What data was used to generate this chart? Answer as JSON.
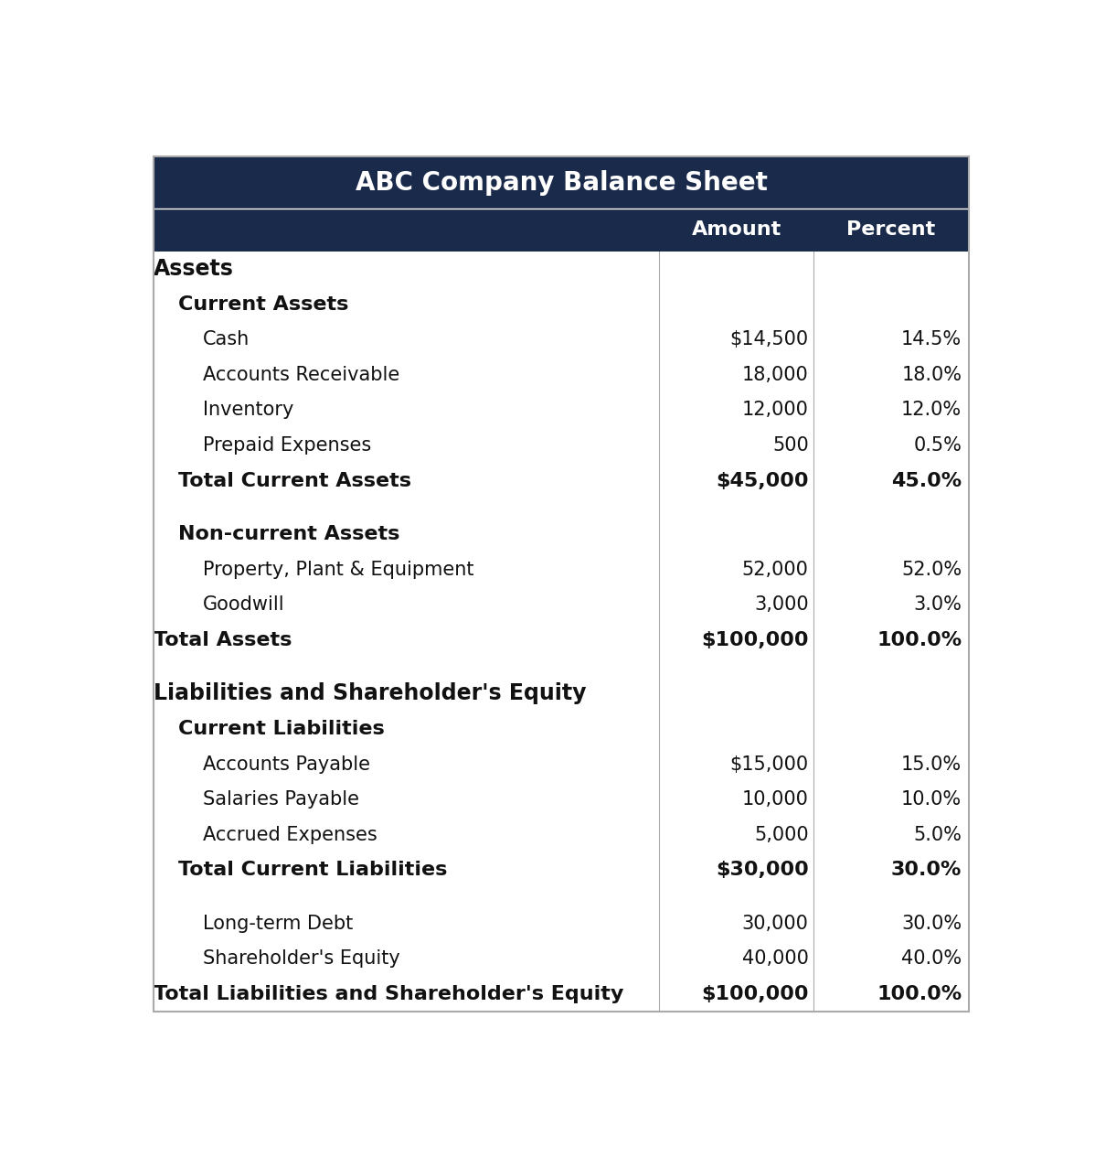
{
  "title": "ABC Company Balance Sheet",
  "header_bg": "#1a2a4a",
  "header_text_color": "#ffffff",
  "subheader_bg": "#1a2a4a",
  "body_bg": "#ffffff",
  "body_text_color": "#111111",
  "border_color": "#aaaaaa",
  "separator_color": "#ffffff",
  "col_headers": [
    "",
    "Amount",
    "Percent"
  ],
  "rows": [
    {
      "label": "Assets",
      "amount": "",
      "percent": "",
      "style": "section",
      "indent": 0
    },
    {
      "label": "Current Assets",
      "amount": "",
      "percent": "",
      "style": "subsection",
      "indent": 1
    },
    {
      "label": "Cash",
      "amount": "$14,500",
      "percent": "14.5%",
      "style": "item",
      "indent": 2
    },
    {
      "label": "Accounts Receivable",
      "amount": "18,000",
      "percent": "18.0%",
      "style": "item",
      "indent": 2
    },
    {
      "label": "Inventory",
      "amount": "12,000",
      "percent": "12.0%",
      "style": "item",
      "indent": 2
    },
    {
      "label": "Prepaid Expenses",
      "amount": "500",
      "percent": "0.5%",
      "style": "item",
      "indent": 2
    },
    {
      "label": "Total Current Assets",
      "amount": "$45,000",
      "percent": "45.0%",
      "style": "total",
      "indent": 1
    },
    {
      "label": "",
      "amount": "",
      "percent": "",
      "style": "spacer",
      "indent": 0
    },
    {
      "label": "Non-current Assets",
      "amount": "",
      "percent": "",
      "style": "subsection",
      "indent": 1
    },
    {
      "label": "Property, Plant & Equipment",
      "amount": "52,000",
      "percent": "52.0%",
      "style": "item",
      "indent": 2
    },
    {
      "label": "Goodwill",
      "amount": "3,000",
      "percent": "3.0%",
      "style": "item",
      "indent": 2
    },
    {
      "label": "Total Assets",
      "amount": "$100,000",
      "percent": "100.0%",
      "style": "total",
      "indent": 0
    },
    {
      "label": "",
      "amount": "",
      "percent": "",
      "style": "spacer",
      "indent": 0
    },
    {
      "label": "Liabilities and Shareholder's Equity",
      "amount": "",
      "percent": "",
      "style": "section",
      "indent": 0
    },
    {
      "label": "Current Liabilities",
      "amount": "",
      "percent": "",
      "style": "subsection",
      "indent": 1
    },
    {
      "label": "Accounts Payable",
      "amount": "$15,000",
      "percent": "15.0%",
      "style": "item",
      "indent": 2
    },
    {
      "label": "Salaries Payable",
      "amount": "10,000",
      "percent": "10.0%",
      "style": "item",
      "indent": 2
    },
    {
      "label": "Accrued Expenses",
      "amount": "5,000",
      "percent": "5.0%",
      "style": "item",
      "indent": 2
    },
    {
      "label": "Total Current Liabilities",
      "amount": "$30,000",
      "percent": "30.0%",
      "style": "total",
      "indent": 1
    },
    {
      "label": "",
      "amount": "",
      "percent": "",
      "style": "spacer",
      "indent": 0
    },
    {
      "label": "Long-term Debt",
      "amount": "30,000",
      "percent": "30.0%",
      "style": "item",
      "indent": 2
    },
    {
      "label": "Shareholder's Equity",
      "amount": "40,000",
      "percent": "40.0%",
      "style": "item",
      "indent": 2
    },
    {
      "label": "Total Liabilities and Shareholder's Equity",
      "amount": "$100,000",
      "percent": "100.0%",
      "style": "total",
      "indent": 0
    }
  ],
  "indent_sizes": [
    0.0,
    0.03,
    0.06
  ],
  "title_fontsize": 20,
  "header_fontsize": 16,
  "section_fontsize": 17,
  "subsection_fontsize": 16,
  "item_fontsize": 15,
  "total_fontsize": 16
}
